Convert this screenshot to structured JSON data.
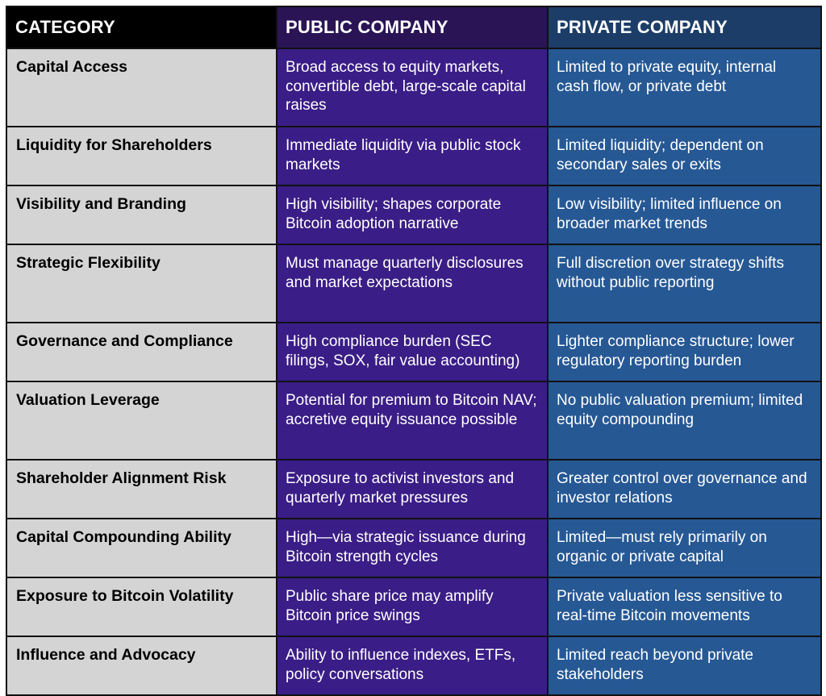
{
  "headers": {
    "category": "CATEGORY",
    "public": "PUBLIC COMPANY",
    "private": "PRIVATE COMPANY"
  },
  "rows": [
    {
      "category": "Capital Access",
      "public": "Broad access to equity markets, convertible debt, large-scale capital raises",
      "private": "Limited to private equity, internal cash flow, or private debt"
    },
    {
      "category": "Liquidity for Shareholders",
      "public": "Immediate liquidity via public stock markets",
      "private": "Limited liquidity; dependent on secondary sales or exits"
    },
    {
      "category": "Visibility and Branding",
      "public": "High visibility; shapes corporate Bitcoin adoption narrative",
      "private": "Low visibility; limited influence on broader market trends"
    },
    {
      "category": "Strategic Flexibility",
      "public": "Must manage quarterly disclosures and market expectations",
      "private": "Full discretion over strategy shifts without public reporting"
    },
    {
      "category": "Governance and Compliance",
      "public": "High compliance burden (SEC filings, SOX, fair value accounting)",
      "private": "Lighter compliance structure; lower regulatory reporting burden"
    },
    {
      "category": "Valuation Leverage",
      "public": "Potential for premium to Bitcoin NAV; accretive equity issuance possible",
      "private": "No public valuation premium; limited equity compounding"
    },
    {
      "category": "Shareholder Alignment Risk",
      "public": "Exposure to activist investors and quarterly market pressures",
      "private": "Greater control over governance and investor relations"
    },
    {
      "category": "Capital Compounding Ability",
      "public": "High—via strategic issuance during Bitcoin strength cycles",
      "private": "Limited—must rely primarily on organic or private capital"
    },
    {
      "category": "Exposure to Bitcoin Volatility",
      "public": "Public share price may amplify Bitcoin price swings",
      "private": "Private valuation less sensitive to real-time Bitcoin movements"
    },
    {
      "category": "Influence and Advocacy",
      "public": "Ability to influence indexes, ETFs, policy conversations",
      "private": "Limited reach beyond private stakeholders"
    }
  ],
  "colors": {
    "header_category": "#000000",
    "header_public": "#2a1456",
    "header_private": "#1c3d68",
    "category_cells": "#d4d4d4",
    "public_cells": "#3a1d86",
    "private_cells": "#265894"
  }
}
